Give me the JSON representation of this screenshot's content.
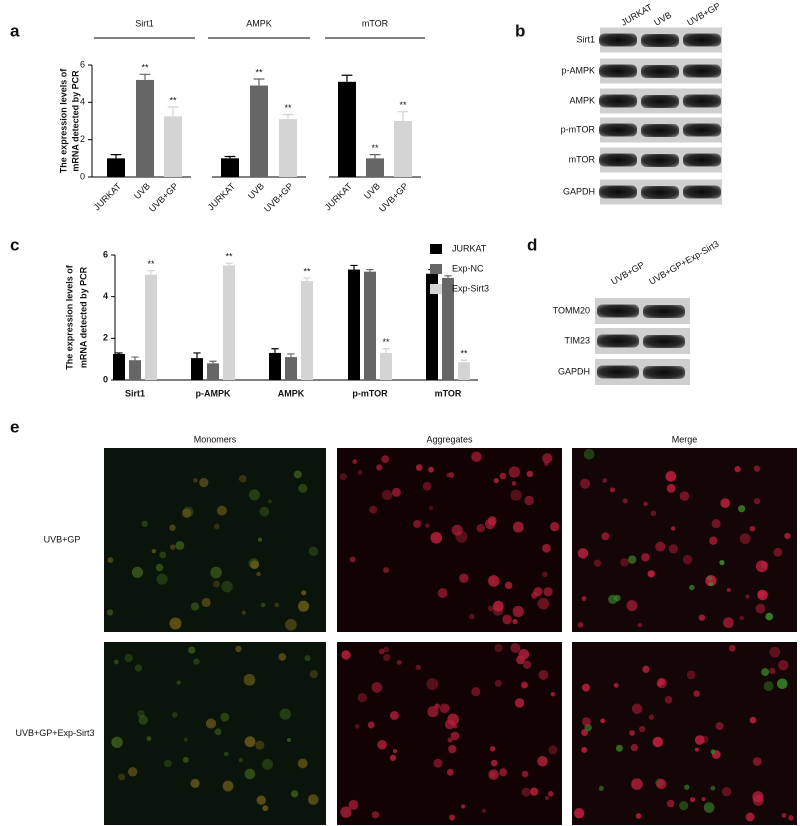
{
  "panel_labels": [
    "a",
    "b",
    "c",
    "d",
    "e"
  ],
  "chart_data": [
    {
      "type": "bar",
      "ylabel": [
        "The expression levels of",
        "mRNA detected by PCR"
      ],
      "ylim": [
        0,
        6
      ],
      "yticks": [
        0,
        2,
        4,
        6
      ],
      "colors": [
        "#000000",
        "#666666",
        "#d4d4d4"
      ],
      "groups": [
        {
          "name": "Sirt1",
          "categories": [
            "JURKAT",
            "UVB",
            "UVB+GP"
          ],
          "values": [
            1.0,
            5.2,
            3.25
          ],
          "errors": [
            0.2,
            0.3,
            0.5
          ],
          "significance": [
            null,
            "**",
            "**"
          ]
        },
        {
          "name": "AMPK",
          "categories": [
            "JURKAT",
            "UVB",
            "UVB+GP"
          ],
          "values": [
            1.0,
            4.9,
            3.1
          ],
          "errors": [
            0.1,
            0.35,
            0.25
          ],
          "significance": [
            null,
            "**",
            "**"
          ]
        },
        {
          "name": "mTOR",
          "categories": [
            "JURKAT",
            "UVB",
            "UVB+GP"
          ],
          "values": [
            5.1,
            1.0,
            3.0
          ],
          "errors": [
            0.35,
            0.2,
            0.5
          ],
          "significance": [
            null,
            "**",
            "**"
          ]
        }
      ]
    },
    {
      "type": "bar",
      "ylabel": [
        "The expression levels of",
        "mRNA detected by PCR"
      ],
      "ylim": [
        0,
        6
      ],
      "yticks": [
        0,
        2,
        4,
        6
      ],
      "categories": [
        "Sirt1",
        "p-AMPK",
        "AMPK",
        "p-mTOR",
        "mTOR"
      ],
      "legend": "upper right",
      "series": [
        {
          "name": "JURKAT",
          "color": "#000000",
          "values": [
            1.25,
            1.05,
            1.3,
            5.3,
            5.1
          ],
          "errors": [
            0.05,
            0.25,
            0.2,
            0.2,
            0.2
          ],
          "significance": [
            null,
            null,
            null,
            null,
            null
          ]
        },
        {
          "name": "Exp-NC",
          "color": "#666666",
          "values": [
            0.95,
            0.8,
            1.1,
            5.2,
            4.9
          ],
          "errors": [
            0.15,
            0.1,
            0.15,
            0.1,
            0.1
          ],
          "significance": [
            null,
            null,
            null,
            null,
            null
          ]
        },
        {
          "name": "Exp-Sirt3",
          "color": "#d4d4d4",
          "values": [
            5.05,
            5.5,
            4.75,
            1.3,
            0.85
          ],
          "errors": [
            0.2,
            0.1,
            0.15,
            0.2,
            0.1
          ],
          "significance": [
            "**",
            "**",
            "**",
            "**",
            "**"
          ]
        }
      ]
    }
  ],
  "blot_b": {
    "lanes": [
      "JURKAT",
      "UVB",
      "UVB+GP"
    ],
    "rows": [
      "Sirt1",
      "p-AMPK",
      "AMPK",
      "p-mTOR",
      "mTOR",
      "GAPDH"
    ]
  },
  "blot_d": {
    "lanes": [
      "UVB+GP",
      "UVB+GP+Exp-Sirt3"
    ],
    "rows": [
      "TOMM20",
      "TIM23",
      "GAPDH"
    ]
  },
  "micrographs": {
    "columns": [
      "Monomers",
      "Aggregates",
      "Merge"
    ],
    "rows": [
      "UVB+GP",
      "UVB+GP+Exp-Sirt3"
    ]
  }
}
